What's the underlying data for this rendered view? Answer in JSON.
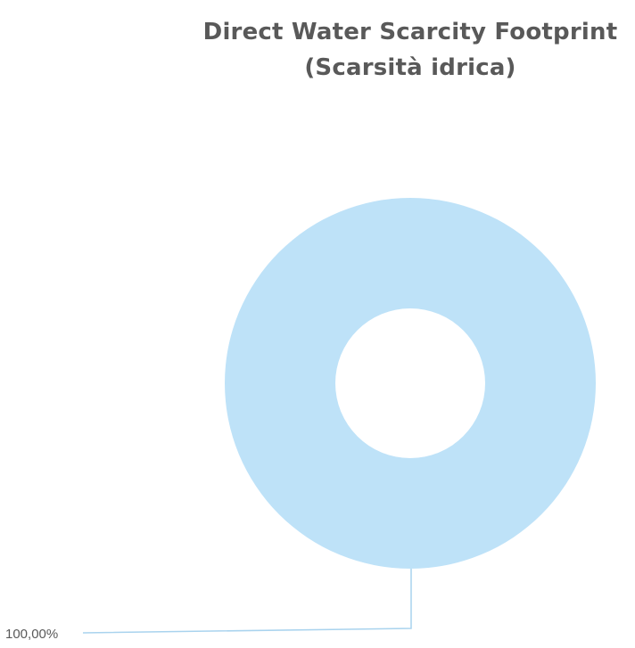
{
  "chart_data": {
    "type": "pie",
    "title": "Direct Water Scarcity Footprint (Scarsità idrica)",
    "title_lines": [
      "Direct Water Scarcity Footprint",
      "(Scarsità idrica)"
    ],
    "donut": true,
    "legend": "none",
    "slices": [
      {
        "value": 100,
        "label": "100,00%",
        "color": "#bee2f8"
      }
    ],
    "leader_line_color": "#a9d3ee"
  }
}
